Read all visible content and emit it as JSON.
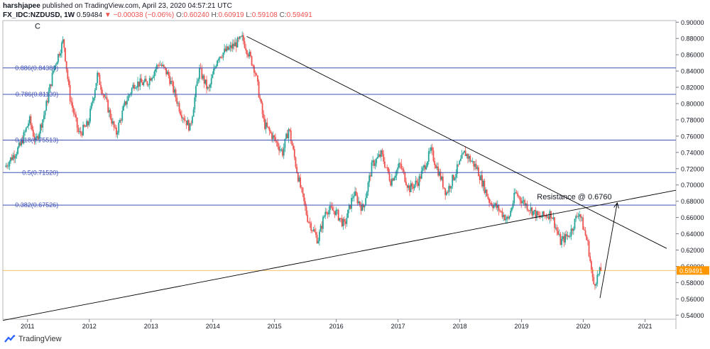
{
  "header": {
    "author": "harshjapee",
    "published": "published on TradingView.com, April 23, 2020 04:57:21 UTC",
    "symbol": "FX_IDC:NZDUSD, 1W",
    "last": "0.59484",
    "change": "−0.00038 (−0.06%)",
    "o_label": "O:",
    "o_val": "0.60240",
    "h_label": "H:",
    "h_val": "0.60919",
    "l_label": "L:",
    "l_val": "0.59108",
    "c_label": "C:",
    "c_val": "0.59491"
  },
  "footer": {
    "brand": "TradingView"
  },
  "colors": {
    "up": "#26a69a",
    "down": "#ef5350",
    "fib": "#3f51b5",
    "price": "#ff9800",
    "trend": "#000000"
  },
  "chart_data": {
    "type": "candlestick",
    "wave_label": "C",
    "yticks": [
      "0.90000",
      "0.88000",
      "0.86000",
      "0.84000",
      "0.82000",
      "0.80000",
      "0.78000",
      "0.76000",
      "0.74000",
      "0.72000",
      "0.70000",
      "0.68000",
      "0.66000",
      "0.64000",
      "0.62000",
      "0.60000",
      "0.58000",
      "0.56000",
      "0.54000"
    ],
    "ylim": [
      0.535,
      0.902
    ],
    "xlim": [
      2010.6,
      2021.5
    ],
    "xticks": [
      "2011",
      "2012",
      "2013",
      "2014",
      "2015",
      "2016",
      "2017",
      "2018",
      "2019",
      "2020",
      "2021"
    ],
    "price_line": {
      "value": 0.59491,
      "label": "0.59491"
    },
    "fib_levels": [
      {
        "label": "0.886(0.84380)",
        "value": 0.8438
      },
      {
        "label": "0.786(0.81139)",
        "value": 0.81139
      },
      {
        "label": "0.618(0.75513)",
        "value": 0.75513
      },
      {
        "label": "0.5(0.71520)",
        "value": 0.7152
      },
      {
        "label": "0.382(0.67526)",
        "value": 0.67526
      }
    ],
    "annotation": {
      "text": "Resistance @ 0.6760",
      "x": 2019.25,
      "y": 0.6825
    },
    "trendlines": [
      {
        "x1": 2014.55,
        "y1": 0.8825,
        "x2": 2021.35,
        "y2": 0.622
      },
      {
        "x1": 2010.6,
        "y1": 0.5335,
        "x2": 2021.5,
        "y2": 0.6935
      }
    ],
    "arrow": {
      "x1": 2020.27,
      "y1": 0.561,
      "x2": 2020.55,
      "y2": 0.678
    },
    "anchors": [
      [
        2010.65,
        0.722
      ],
      [
        2010.9,
        0.748
      ],
      [
        2011.05,
        0.78
      ],
      [
        2011.15,
        0.752
      ],
      [
        2011.3,
        0.79
      ],
      [
        2011.45,
        0.845
      ],
      [
        2011.6,
        0.878
      ],
      [
        2011.7,
        0.81
      ],
      [
        2011.85,
        0.762
      ],
      [
        2012.0,
        0.775
      ],
      [
        2012.15,
        0.835
      ],
      [
        2012.3,
        0.8
      ],
      [
        2012.45,
        0.762
      ],
      [
        2012.6,
        0.8
      ],
      [
        2012.75,
        0.825
      ],
      [
        2012.95,
        0.825
      ],
      [
        2013.15,
        0.85
      ],
      [
        2013.3,
        0.835
      ],
      [
        2013.5,
        0.79
      ],
      [
        2013.65,
        0.77
      ],
      [
        2013.8,
        0.842
      ],
      [
        2013.95,
        0.815
      ],
      [
        2014.1,
        0.858
      ],
      [
        2014.3,
        0.868
      ],
      [
        2014.5,
        0.88
      ],
      [
        2014.7,
        0.842
      ],
      [
        2014.85,
        0.775
      ],
      [
        2015.0,
        0.758
      ],
      [
        2015.15,
        0.74
      ],
      [
        2015.25,
        0.77
      ],
      [
        2015.4,
        0.71
      ],
      [
        2015.55,
        0.66
      ],
      [
        2015.72,
        0.632
      ],
      [
        2015.85,
        0.67
      ],
      [
        2016.0,
        0.668
      ],
      [
        2016.15,
        0.65
      ],
      [
        2016.3,
        0.69
      ],
      [
        2016.45,
        0.67
      ],
      [
        2016.6,
        0.725
      ],
      [
        2016.75,
        0.738
      ],
      [
        2016.9,
        0.705
      ],
      [
        2017.05,
        0.725
      ],
      [
        2017.2,
        0.695
      ],
      [
        2017.35,
        0.705
      ],
      [
        2017.55,
        0.742
      ],
      [
        2017.8,
        0.69
      ],
      [
        2017.95,
        0.715
      ],
      [
        2018.1,
        0.74
      ],
      [
        2018.3,
        0.72
      ],
      [
        2018.5,
        0.68
      ],
      [
        2018.65,
        0.67
      ],
      [
        2018.8,
        0.656
      ],
      [
        2018.92,
        0.69
      ],
      [
        2019.1,
        0.675
      ],
      [
        2019.3,
        0.66
      ],
      [
        2019.5,
        0.665
      ],
      [
        2019.65,
        0.63
      ],
      [
        2019.8,
        0.64
      ],
      [
        2019.95,
        0.668
      ],
      [
        2020.1,
        0.625
      ],
      [
        2020.18,
        0.577
      ],
      [
        2020.3,
        0.595
      ]
    ]
  }
}
